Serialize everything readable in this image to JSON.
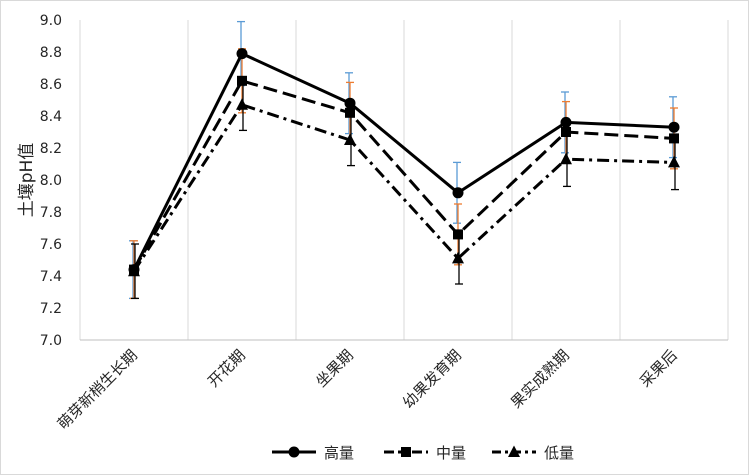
{
  "chart_data": {
    "type": "line",
    "title": "",
    "xlabel": "",
    "ylabel": "土壤pH值",
    "ylim": [
      7.0,
      9.0
    ],
    "yticks": [
      "7.0",
      "7.2",
      "7.4",
      "7.6",
      "7.8",
      "8.0",
      "8.2",
      "8.4",
      "8.6",
      "8.8",
      "9.0"
    ],
    "categories": [
      "萌芽新梢生长期",
      "开花期",
      "坐果期",
      "幼果发育期",
      "果实成熟期",
      "采果后"
    ],
    "grid": "vertical",
    "legend_position": "bottom",
    "series": [
      {
        "name": "高量",
        "values": [
          7.44,
          8.79,
          8.48,
          7.92,
          8.36,
          8.33
        ],
        "error": [
          0.18,
          0.2,
          0.19,
          0.19,
          0.19,
          0.19
        ],
        "color": "#000000",
        "error_color": "#5b9bd5",
        "line_style": "solid",
        "marker": "circle"
      },
      {
        "name": "中量",
        "values": [
          7.44,
          8.62,
          8.42,
          7.66,
          8.3,
          8.26
        ],
        "error": [
          0.18,
          0.2,
          0.19,
          0.19,
          0.19,
          0.19
        ],
        "color": "#000000",
        "error_color": "#ed7d31",
        "line_style": "dashed",
        "marker": "square"
      },
      {
        "name": "低量",
        "values": [
          7.43,
          8.47,
          8.25,
          7.51,
          8.13,
          8.11
        ],
        "error": [
          0.17,
          0.16,
          0.16,
          0.16,
          0.17,
          0.17
        ],
        "color": "#000000",
        "error_color": "#000000",
        "line_style": "dash-dot",
        "marker": "triangle"
      }
    ]
  }
}
